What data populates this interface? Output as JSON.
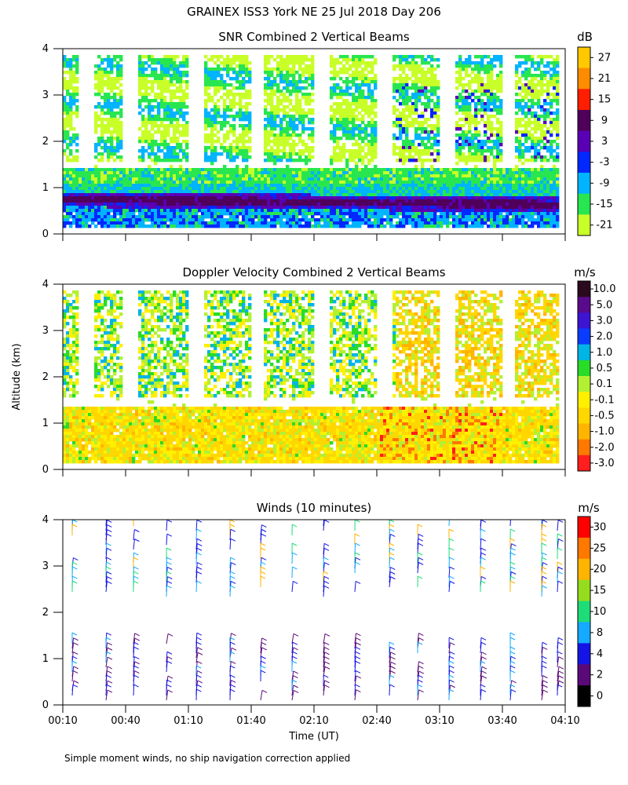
{
  "figure": {
    "title": "GRAINEX ISS3 York NE  25 Jul 2018 Day 206",
    "ylabel": "Altitude (km)",
    "xlabel": "Time (UT)",
    "footnote": "Simple moment winds, no ship navigation correction applied"
  },
  "chart_data": [
    {
      "type": "heatmap",
      "title": "SNR Combined 2 Vertical Beams",
      "quantity": "SNR",
      "unit": "dB",
      "xlabel": "",
      "ylabel": "Altitude (km)",
      "ylim": [
        0,
        4
      ],
      "y_ticks": [
        "0",
        "1",
        "2",
        "3",
        "4"
      ],
      "x_ticks_labels_shown": false,
      "colorbar": {
        "labels": [
          "27",
          "21",
          "15",
          "9",
          "3",
          "-3",
          "-9",
          "-15",
          "-21"
        ],
        "colors": [
          "#ffc800",
          "#ff8c00",
          "#ff1e00",
          "#50005a",
          "#5a00b4",
          "#0028ff",
          "#00b4ff",
          "#28e650",
          "#c8ff28"
        ]
      },
      "features": {
        "strong_layer_altitude_km": [
          0.7,
          0.9
        ],
        "lower_layer_top_km": 1.4,
        "upper_data_altitude_km": [
          1.6,
          3.9
        ]
      }
    },
    {
      "type": "heatmap",
      "title": "Doppler Velocity Combined 2 Vertical Beams",
      "quantity": "Doppler velocity",
      "unit": "m/s",
      "xlabel": "",
      "ylabel": "Altitude (km)",
      "ylim": [
        0,
        4
      ],
      "y_ticks": [
        "0",
        "1",
        "2",
        "3",
        "4"
      ],
      "x_ticks_labels_shown": false,
      "colorbar": {
        "labels": [
          "10.0",
          "5.0",
          "3.0",
          "2.0",
          "1.0",
          "0.5",
          "0.1",
          "-0.1",
          "-0.5",
          "-1.0",
          "-2.0",
          "-3.0"
        ],
        "colors": [
          "#2a0a1e",
          "#5a0a8c",
          "#3c14d2",
          "#0a3cff",
          "#00b4e6",
          "#28dc28",
          "#b4f032",
          "#fff000",
          "#ffd700",
          "#ffb400",
          "#ff7800",
          "#ff1e1e"
        ]
      }
    },
    {
      "type": "scatter",
      "title": "Winds (10 minutes)",
      "quantity": "Wind barbs",
      "unit": "m/s",
      "xlabel": "Time (UT)",
      "ylabel": "Altitude (km)",
      "ylim": [
        0,
        4
      ],
      "y_ticks": [
        "0",
        "1",
        "2",
        "3",
        "4"
      ],
      "x_ticks": [
        "00:10",
        "00:40",
        "01:10",
        "01:40",
        "02:10",
        "02:40",
        "03:10",
        "03:40",
        "04:10"
      ],
      "xlim": [
        "00:10",
        "04:10"
      ],
      "colorbar": {
        "labels": [
          "30",
          "25",
          "20",
          "15",
          "10",
          "8",
          "4",
          "2",
          "0"
        ],
        "colors": [
          "#ff0000",
          "#ff7800",
          "#ffb400",
          "#96dc1e",
          "#1edc78",
          "#14aaff",
          "#1414e6",
          "#5a0a78",
          "#000000"
        ]
      }
    }
  ]
}
